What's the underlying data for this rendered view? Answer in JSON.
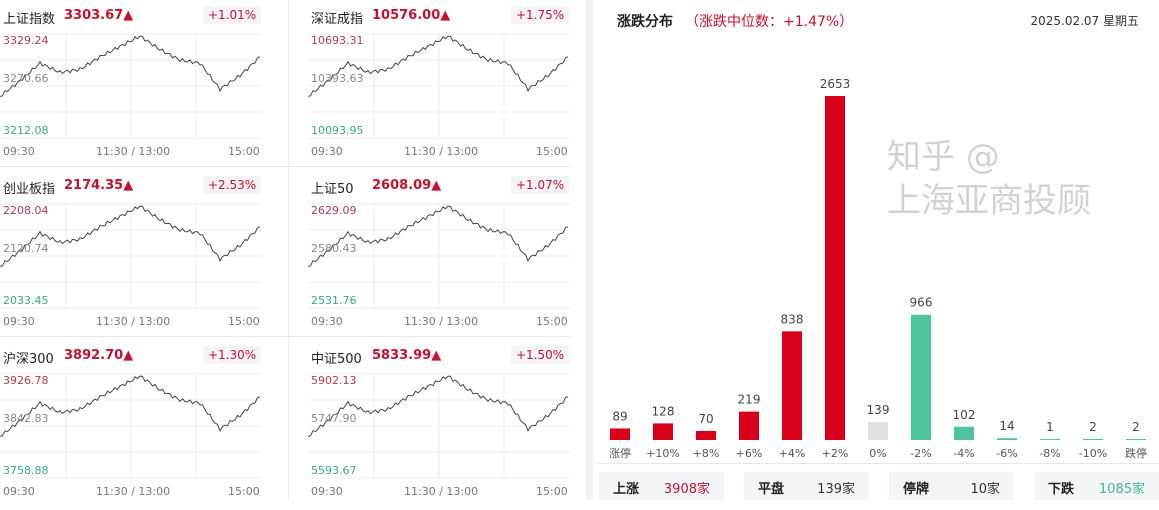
{
  "time_axis": {
    "start": "09:30",
    "mid": "11:30 / 13:00",
    "end": "15:00"
  },
  "indices": [
    {
      "name": "上证指数",
      "price": "3303.67▲",
      "change": "+1.01%",
      "high": "3329.24",
      "mid": "3270.66",
      "low": "3212.08",
      "series": [
        3258.9,
        3276.5,
        3296.4,
        3285.9,
        3289.4,
        3303.5,
        3315.2,
        3326.9,
        3311.7,
        3299.9,
        3296.4,
        3267.1,
        3282.4,
        3303.5
      ]
    },
    {
      "name": "深证成指",
      "price": "10576.00▲",
      "change": "+1.75%",
      "high": "10693.31",
      "mid": "10393.63",
      "low": "10093.95",
      "series": [
        10333.7,
        10423.6,
        10525.5,
        10471.5,
        10489.5,
        10561.4,
        10621.4,
        10681.3,
        10603.4,
        10543.5,
        10525.5,
        10375.6,
        10453.6,
        10561.4
      ]
    },
    {
      "name": "创业板指",
      "price": "2174.35▲",
      "change": "+2.53%",
      "high": "2208.04",
      "mid": "2120.74",
      "low": "2033.45",
      "series": [
        2103.3,
        2129.5,
        2159.2,
        2143.4,
        2148.7,
        2169.6,
        2187.1,
        2204.5,
        2181.9,
        2164.4,
        2159.2,
        2115.5,
        2138.2,
        2169.6
      ]
    },
    {
      "name": "上证50",
      "price": "2608.09▲",
      "change": "+1.07%",
      "high": "2629.09",
      "mid": "2580.43",
      "low": "2531.76",
      "series": [
        2570.7,
        2585.3,
        2601.8,
        2593.1,
        2596.0,
        2607.7,
        2617.4,
        2627.1,
        2614.5,
        2604.8,
        2601.8,
        2577.5,
        2590.2,
        2607.7
      ]
    },
    {
      "name": "沪深300",
      "price": "3892.70▲",
      "change": "+1.30%",
      "high": "3926.78",
      "mid": "3842.83",
      "low": "3758.88",
      "series": [
        3826.0,
        3851.2,
        3879.8,
        3864.7,
        3869.7,
        3889.8,
        3906.6,
        3923.4,
        3901.6,
        3884.8,
        3879.8,
        3837.8,
        3859.6,
        3889.8
      ]
    },
    {
      "name": "中证500",
      "price": "5833.99▲",
      "change": "+1.50%",
      "high": "5902.13",
      "mid": "5747.90",
      "low": "5593.67",
      "series": [
        5717.1,
        5763.3,
        5815.8,
        5788.0,
        5797.3,
        5834.3,
        5865.1,
        5895.9,
        5855.9,
        5825.0,
        5815.8,
        5738.6,
        5778.7,
        5834.3
      ]
    }
  ],
  "distribution": {
    "title": "涨跌分布",
    "subtitle": "（涨跌中位数：+1.47%）",
    "date": "2025.02.07 星期五",
    "colors": {
      "up": "#d9001b",
      "flat": "#e2e2e2",
      "down": "#4fc4a0"
    },
    "chart_data": {
      "type": "bar",
      "categories": [
        "涨停",
        "+10%",
        "+8%",
        "+6%",
        "+4%",
        "+2%",
        "0%",
        "-2%",
        "-4%",
        "-6%",
        "-8%",
        "-10%",
        "跌停"
      ],
      "values": [
        89,
        128,
        70,
        219,
        838,
        2653,
        139,
        966,
        102,
        14,
        1,
        2,
        2
      ],
      "bar_colors": [
        "up",
        "up",
        "up",
        "up",
        "up",
        "up",
        "flat",
        "down",
        "down",
        "down",
        "down",
        "down",
        "down"
      ]
    },
    "summary": [
      {
        "label": "上涨",
        "value": "3908家",
        "color": "#c8102e"
      },
      {
        "label": "平盘",
        "value": "139家",
        "color": "#333333"
      },
      {
        "label": "停牌",
        "value": "10家",
        "color": "#333333"
      },
      {
        "label": "下跌",
        "value": "1085家",
        "color": "#3cb98e"
      }
    ]
  },
  "watermark": "知乎 @上海亚商投顾"
}
